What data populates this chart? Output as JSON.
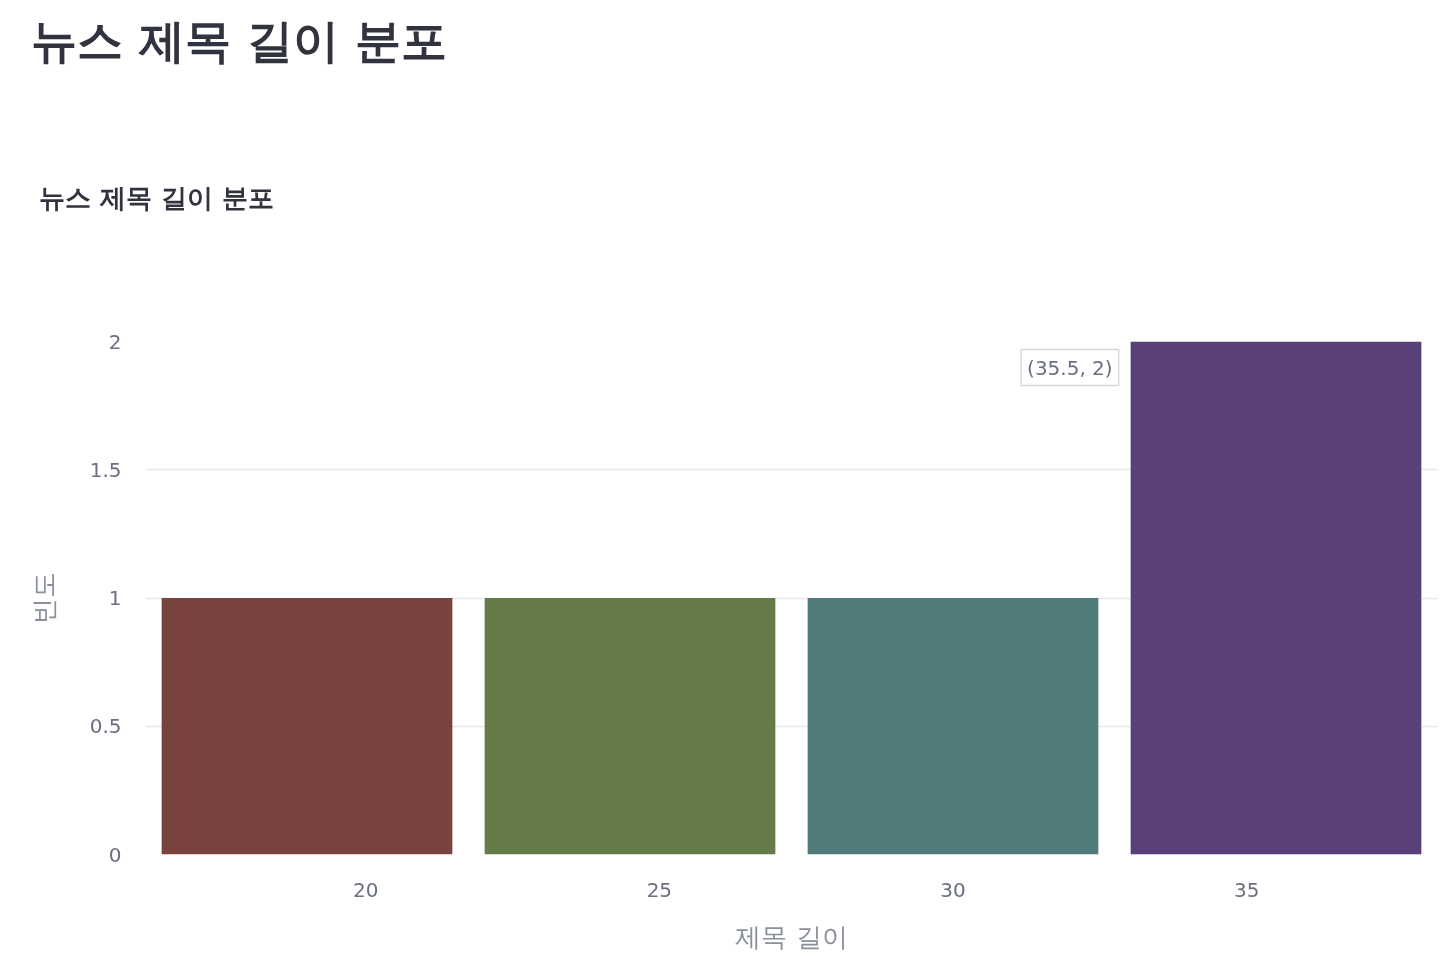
{
  "chart_data": {
    "type": "histogram",
    "title": "뉴스 제목 길이 분포",
    "subtitle": "뉴스 제목 길이 분포",
    "xlabel": "제목 길이",
    "ylabel": "빈도",
    "bins": [
      16.25,
      21.75,
      27.25,
      32.75,
      38.25
    ],
    "values": [
      1,
      1,
      1,
      2
    ],
    "colors": [
      "#78423f",
      "#667c48",
      "#517b7b",
      "#5a4079"
    ],
    "xlim": [
      16.25,
      38.25
    ],
    "ylim": [
      0,
      2
    ],
    "xticks": [
      20,
      25,
      30,
      35
    ],
    "yticks": [
      0,
      0.5,
      1,
      1.5,
      2
    ],
    "grid": "y",
    "annotations": [
      "(35.5, 2)"
    ]
  }
}
